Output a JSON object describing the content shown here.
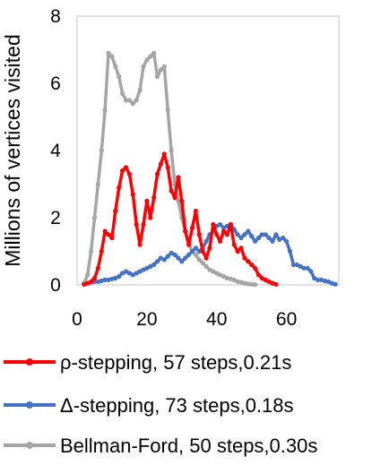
{
  "chart_data": {
    "type": "line",
    "ylabel": "Millions of vertices visited",
    "xlabel": "",
    "title": "",
    "xlim": [
      0,
      75
    ],
    "ylim": [
      0,
      8
    ],
    "xticks": [
      0,
      20,
      40,
      60
    ],
    "yticks": [
      0,
      2,
      4,
      6,
      8
    ],
    "grid": false,
    "legend_position": "bottom",
    "series": [
      {
        "name": "ρ-stepping, 57 steps,0.21s",
        "color": "#ff0000",
        "x": [
          2,
          3,
          4,
          5,
          6,
          7,
          8,
          9,
          10,
          11,
          12,
          13,
          14,
          15,
          16,
          17,
          18,
          19,
          20,
          21,
          22,
          23,
          24,
          25,
          26,
          27,
          28,
          29,
          30,
          31,
          32,
          33,
          34,
          35,
          36,
          37,
          38,
          39,
          40,
          41,
          42,
          43,
          44,
          45,
          46,
          47,
          48,
          49,
          50,
          51,
          52,
          53,
          54,
          55,
          56,
          57
        ],
        "y": [
          0.02,
          0.05,
          0.1,
          0.2,
          0.5,
          1.0,
          1.6,
          1.5,
          1.4,
          2.2,
          2.9,
          3.4,
          3.5,
          3.3,
          2.7,
          1.8,
          1.2,
          1.8,
          2.5,
          2.0,
          2.6,
          3.3,
          3.6,
          3.9,
          3.5,
          2.8,
          2.6,
          3.2,
          2.5,
          1.6,
          1.2,
          1.7,
          2.2,
          1.5,
          1.0,
          0.8,
          1.1,
          1.8,
          1.5,
          1.3,
          1.6,
          1.5,
          1.8,
          1.2,
          1.0,
          1.1,
          0.8,
          0.7,
          0.6,
          0.5,
          0.3,
          0.2,
          0.15,
          0.1,
          0.05,
          0.02
        ]
      },
      {
        "name": "Δ-stepping, 73 steps,0.18s",
        "color": "#4472c4",
        "x": [
          2,
          3,
          4,
          5,
          6,
          7,
          8,
          9,
          10,
          11,
          12,
          13,
          14,
          15,
          16,
          17,
          18,
          19,
          20,
          21,
          22,
          23,
          24,
          25,
          26,
          27,
          28,
          29,
          30,
          31,
          32,
          33,
          34,
          35,
          36,
          37,
          38,
          39,
          40,
          41,
          42,
          43,
          44,
          45,
          46,
          47,
          48,
          49,
          50,
          51,
          52,
          53,
          54,
          55,
          56,
          57,
          58,
          59,
          60,
          61,
          62,
          63,
          64,
          65,
          66,
          67,
          68,
          69,
          70,
          71,
          72,
          73,
          74
        ],
        "y": [
          0.02,
          0.05,
          0.08,
          0.1,
          0.1,
          0.12,
          0.15,
          0.15,
          0.18,
          0.2,
          0.25,
          0.35,
          0.4,
          0.35,
          0.3,
          0.35,
          0.4,
          0.45,
          0.5,
          0.55,
          0.6,
          0.7,
          0.8,
          0.75,
          0.85,
          0.95,
          0.9,
          0.8,
          0.7,
          0.8,
          0.9,
          1.0,
          1.1,
          1.0,
          1.1,
          1.3,
          1.5,
          1.6,
          1.75,
          1.8,
          1.7,
          1.75,
          1.8,
          1.65,
          1.5,
          1.4,
          1.5,
          1.6,
          1.45,
          1.3,
          1.4,
          1.5,
          1.5,
          1.4,
          1.3,
          1.5,
          1.35,
          1.4,
          1.3,
          1.0,
          0.6,
          0.6,
          0.55,
          0.5,
          0.5,
          0.4,
          0.2,
          0.15,
          0.15,
          0.12,
          0.1,
          0.05,
          0.02
        ]
      },
      {
        "name": "Bellman-Ford, 50 steps,0.30s",
        "color": "#a5a5a5",
        "x": [
          2,
          3,
          4,
          5,
          6,
          7,
          8,
          9,
          10,
          11,
          12,
          13,
          14,
          15,
          16,
          17,
          18,
          19,
          20,
          21,
          22,
          23,
          24,
          25,
          26,
          27,
          28,
          29,
          30,
          31,
          32,
          33,
          34,
          35,
          36,
          37,
          38,
          39,
          40,
          41,
          42,
          43,
          44,
          45,
          46,
          47,
          48,
          49,
          50,
          51
        ],
        "y": [
          0.05,
          0.3,
          1.0,
          2.0,
          3.0,
          4.0,
          5.2,
          6.9,
          6.8,
          6.5,
          6.2,
          5.7,
          5.5,
          5.5,
          5.4,
          5.5,
          5.8,
          6.5,
          6.7,
          6.8,
          6.9,
          6.2,
          6.4,
          6.5,
          5.2,
          4.0,
          3.0,
          2.5,
          2.0,
          1.6,
          1.2,
          1.0,
          0.9,
          0.75,
          0.65,
          0.55,
          0.45,
          0.4,
          0.35,
          0.3,
          0.25,
          0.2,
          0.18,
          0.15,
          0.1,
          0.08,
          0.05,
          0.03,
          0.02,
          0.01
        ]
      }
    ]
  }
}
